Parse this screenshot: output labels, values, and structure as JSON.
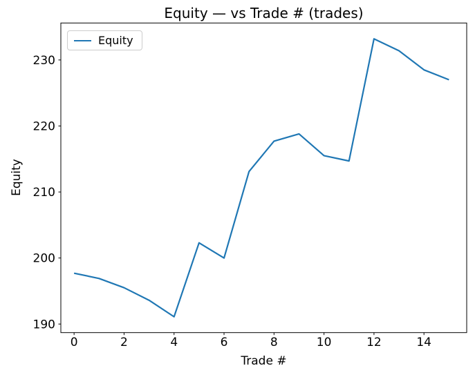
{
  "figure": {
    "background": "#ffffff"
  },
  "chart_data": {
    "type": "line",
    "title": "Equity — vs Trade # (trades)",
    "xlabel": "Trade #",
    "ylabel": "Equity",
    "x": [
      0,
      1,
      2,
      3,
      4,
      5,
      6,
      7,
      8,
      9,
      10,
      11,
      12,
      13,
      14,
      15
    ],
    "series": [
      {
        "name": "Equity",
        "color": "#1f77b4",
        "values": [
          197.7,
          196.9,
          195.5,
          193.6,
          191.1,
          202.3,
          200.0,
          213.1,
          217.7,
          218.8,
          215.5,
          214.7,
          233.2,
          231.4,
          228.5,
          227.0
        ]
      }
    ],
    "xlim": [
      -0.53,
      15.71
    ],
    "ylim": [
      188.7,
      235.6
    ],
    "xticks": [
      0,
      2,
      4,
      6,
      8,
      10,
      12,
      14
    ],
    "yticks": [
      190,
      200,
      210,
      220,
      230
    ],
    "grid": false,
    "legend": {
      "position": "upper-left",
      "entries": [
        "Equity"
      ]
    },
    "axis_color": "#000000",
    "legend_border_color": "#cccccc"
  }
}
